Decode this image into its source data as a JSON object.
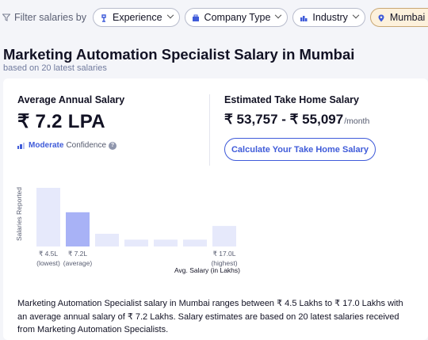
{
  "filters": {
    "label": "Filter salaries by",
    "chips": [
      {
        "label": "Experience",
        "icon": "experience-icon",
        "active": false
      },
      {
        "label": "Company Type",
        "icon": "company-icon",
        "active": false
      },
      {
        "label": "Industry",
        "icon": "industry-icon",
        "active": false
      },
      {
        "label": "Mumbai",
        "icon": "location-pin-icon",
        "active": true
      }
    ]
  },
  "header": {
    "title": "Marketing Automation Specialist Salary in Mumbai",
    "subtitle": "based on 20 latest salaries"
  },
  "average": {
    "label": "Average Annual Salary",
    "value": "₹ 7.2 LPA",
    "confidence_level": "Moderate",
    "confidence_text": "Confidence"
  },
  "take_home": {
    "label": "Estimated Take Home Salary",
    "range": "₹ 53,757 - ₹ 55,097",
    "period": "/month",
    "button": "Calculate Your Take Home Salary"
  },
  "chart_data": {
    "type": "bar",
    "ylabel": "Salaries Reported",
    "xlabel": "Avg. Salary (in Lakhs)",
    "values": [
      6,
      3.5,
      1.3,
      0.7,
      0.7,
      0.7,
      2.1
    ],
    "highlight_index": 1,
    "x_labels": [
      {
        "index": 0,
        "value": "₹ 4.5L",
        "note": "(lowest)"
      },
      {
        "index": 1,
        "value": "₹ 7.2L",
        "note": "(average)"
      },
      {
        "index": 6,
        "value": "₹ 17.0L",
        "note": "(highest)"
      }
    ],
    "colors": {
      "bar": "#e6e9fb",
      "highlight": "#a8b2f6"
    }
  },
  "description": "Marketing Automation Specialist salary in Mumbai ranges between ₹ 4.5 Lakhs to ₹ 17.0 Lakhs with an average annual salary of ₹ 7.2 Lakhs. Salary estimates are based on 20 latest salaries received from Marketing Automation Specialists."
}
